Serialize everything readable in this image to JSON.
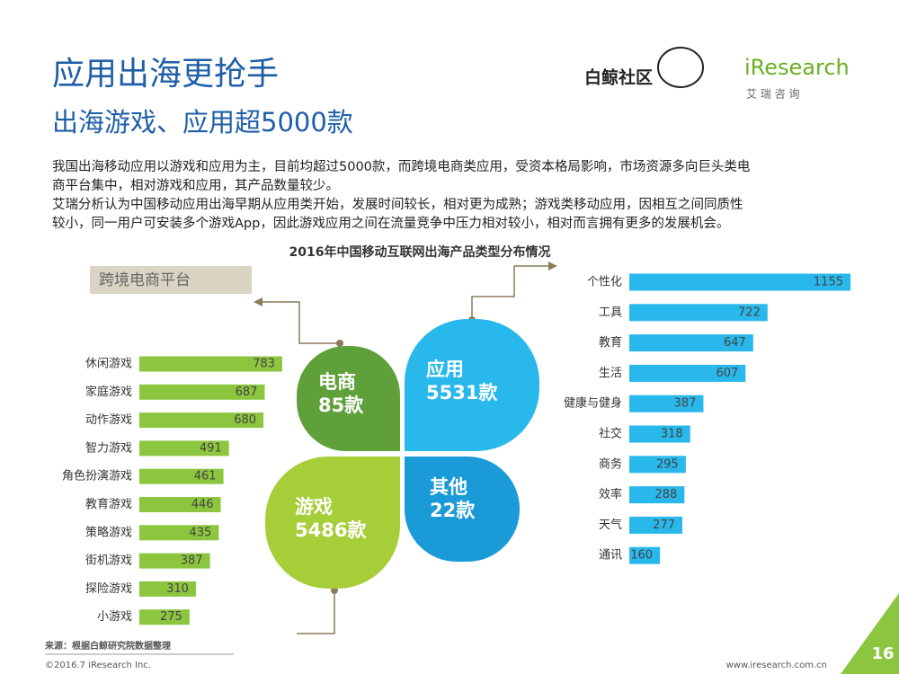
{
  "header": {
    "title": "应用出海更抢手",
    "subtitle": "出海游戏、应用超5000款"
  },
  "logos": {
    "baijing": "白鲸社区",
    "iresearch": "iResearch",
    "iresearch_cn": "艾 瑞 咨 询"
  },
  "body": [
    "我国出海移动应用以游戏和应用为主，目前均超过5000款，而跨境电商类应用，受资本格局影响，市场资源多向巨头类电",
    "商平台集中，相对游戏和应用，其产品数量较少。",
    "艾瑞分析认为中国移动应用出海早期从应用类开始，发展时间较长，相对更为成熟；游戏类移动应用，因相互之间同质性",
    "较小，同一用户可安装多个游戏App，因此游戏应用之间在流量竞争中压力相对较小，相对而言拥有更多的发展机会。"
  ],
  "figure_title": "2016年中国移动互联网出海产品类型分布情况",
  "callout": "跨境电商平台",
  "clover": [
    {
      "label": "电商",
      "count": "85款"
    },
    {
      "label": "应用",
      "count": "5531款"
    },
    {
      "label": "游戏",
      "count": "5486款"
    },
    {
      "label": "其他",
      "count": "22款"
    }
  ],
  "chart_data": [
    {
      "type": "bar",
      "color": "#8cc63f",
      "categories": [
        "休闲游戏",
        "家庭游戏",
        "动作游戏",
        "智力游戏",
        "角色扮演游戏",
        "教育游戏",
        "策略游戏",
        "街机游戏",
        "探险游戏",
        "小游戏"
      ],
      "values": [
        783,
        687,
        680,
        491,
        461,
        446,
        435,
        387,
        310,
        275
      ]
    },
    {
      "type": "bar",
      "color": "#29b8eb",
      "categories": [
        "个性化",
        "工具",
        "教育",
        "生活",
        "健康与健身",
        "社交",
        "商务",
        "效率",
        "天气",
        "通讯"
      ],
      "values": [
        1155,
        722,
        647,
        607,
        387,
        318,
        295,
        288,
        277,
        160
      ]
    }
  ],
  "footer": {
    "source": "来源：根据白鲸研究院数据整理",
    "copyright": "©2016.7 iResearch Inc.",
    "url": "www.iresearch.com.cn",
    "page": 16
  }
}
